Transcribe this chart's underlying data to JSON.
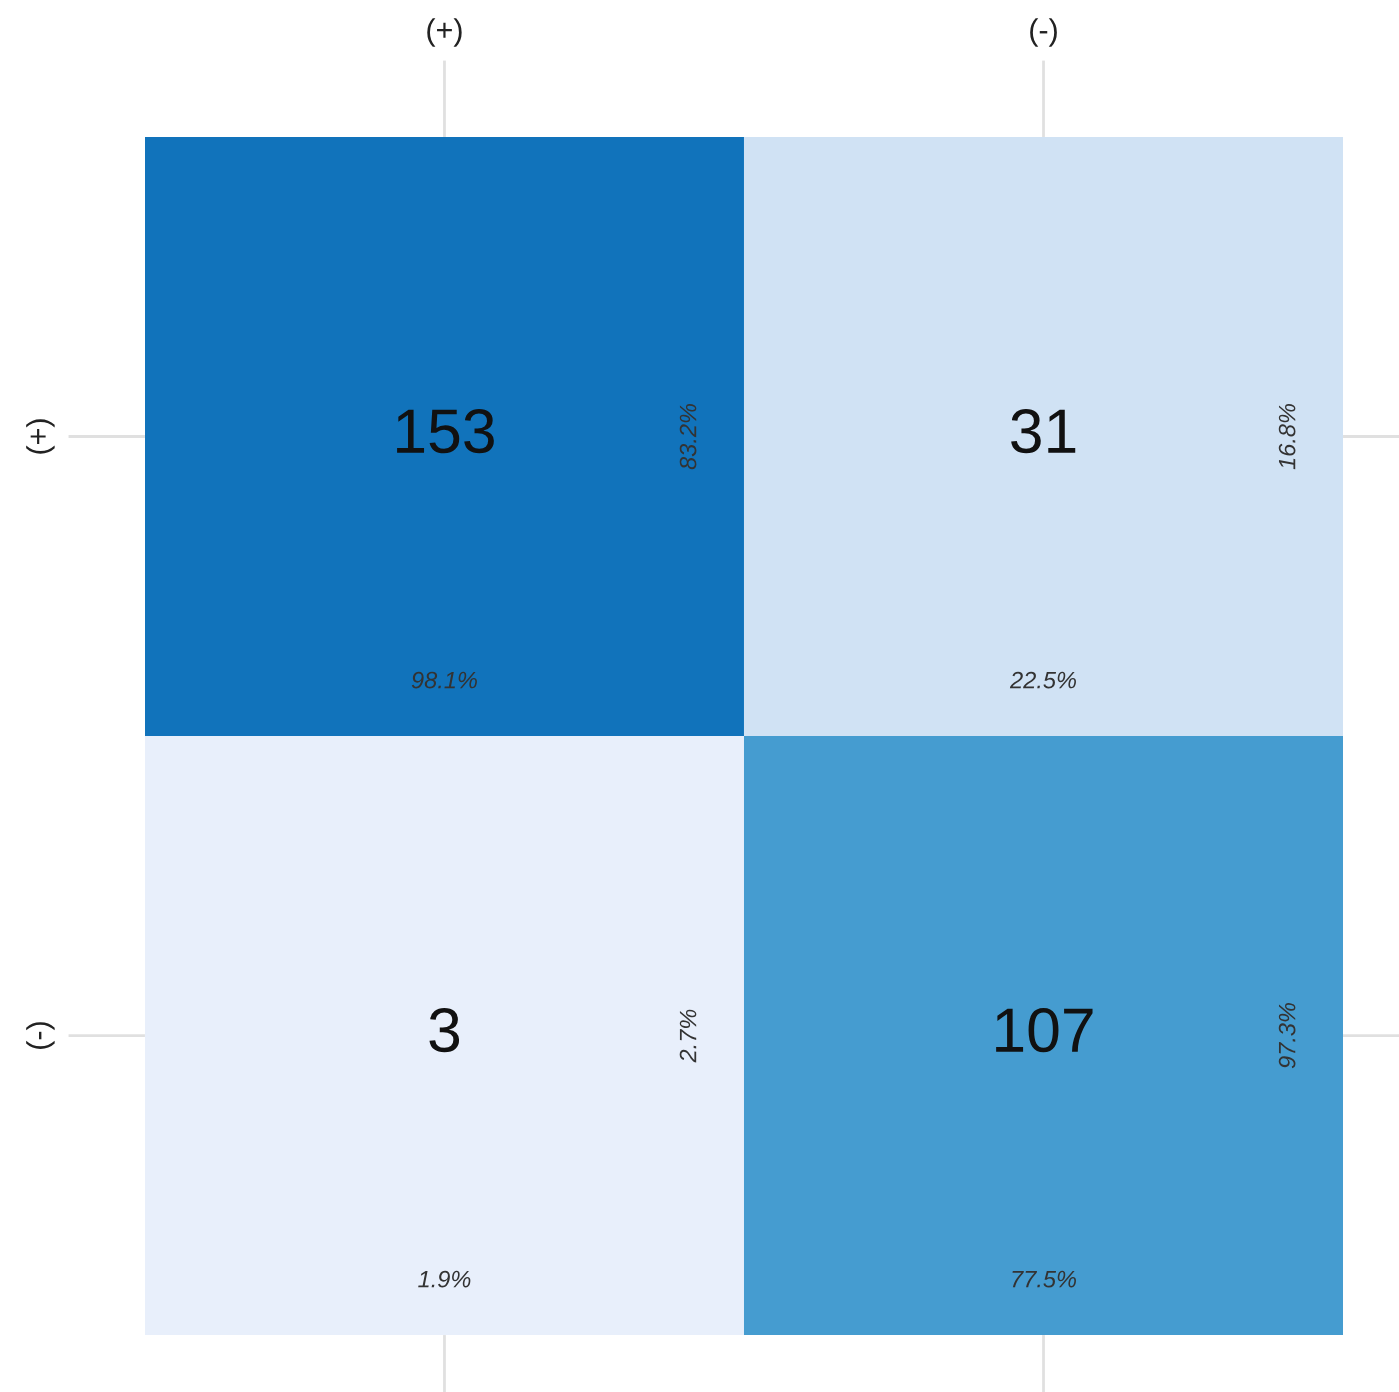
{
  "chart_data": {
    "type": "heatmap",
    "categories": [
      "(+)",
      "(-)"
    ],
    "y_categories": [
      "(+)",
      "(-)"
    ],
    "cells": [
      [
        153,
        31
      ],
      [
        3,
        107
      ]
    ],
    "data_labels": true,
    "grid": false,
    "annotations": [
      "98.1%",
      "83.2%",
      "22.5%",
      "16.8%",
      "1.9%",
      "2.7%",
      "77.5%",
      "97.3%"
    ]
  }
}
